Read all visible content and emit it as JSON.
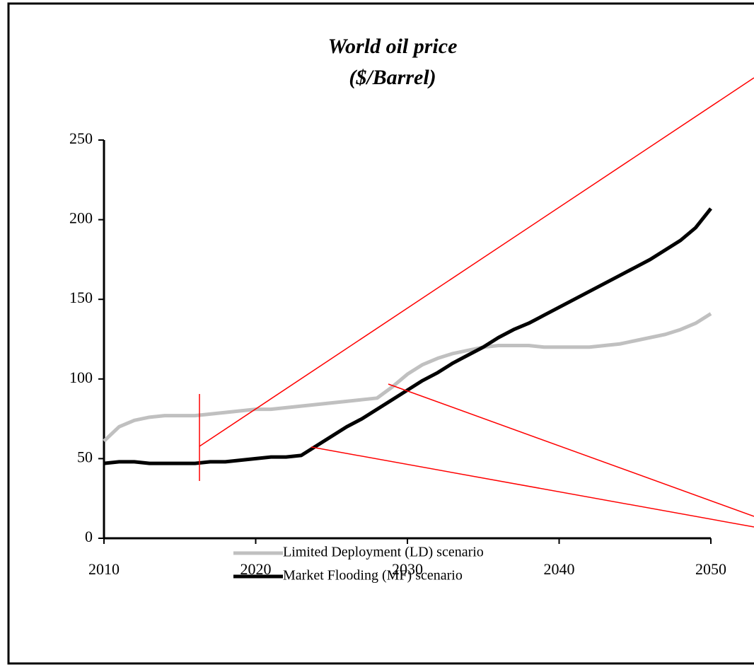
{
  "chart_data": {
    "type": "line",
    "title": "World oil price",
    "subtitle": "($/Barrel)",
    "x": [
      2010,
      2011,
      2012,
      2013,
      2014,
      2015,
      2016,
      2017,
      2018,
      2019,
      2020,
      2021,
      2022,
      2023,
      2024,
      2025,
      2026,
      2027,
      2028,
      2029,
      2030,
      2031,
      2032,
      2033,
      2034,
      2035,
      2036,
      2037,
      2038,
      2039,
      2040,
      2041,
      2042,
      2043,
      2044,
      2045,
      2046,
      2047,
      2048,
      2049,
      2050
    ],
    "series": [
      {
        "name": "Limited Deployment (LD) scenario",
        "color": "#c0c0c0",
        "values": [
          61,
          70,
          74,
          76,
          77,
          77,
          77,
          78,
          79,
          80,
          81,
          81,
          82,
          83,
          84,
          85,
          86,
          87,
          88,
          95,
          103,
          109,
          113,
          116,
          118,
          120,
          121,
          121,
          121,
          120,
          120,
          120,
          120,
          121,
          122,
          124,
          126,
          128,
          131,
          135,
          141
        ]
      },
      {
        "name": "Market Flooding (MF) scenario",
        "color": "#000000",
        "values": [
          47,
          48,
          48,
          47,
          47,
          47,
          47,
          48,
          48,
          49,
          50,
          51,
          51,
          52,
          58,
          64,
          70,
          75,
          81,
          87,
          93,
          99,
          104,
          110,
          115,
          120,
          126,
          131,
          135,
          140,
          145,
          150,
          155,
          160,
          165,
          170,
          175,
          181,
          187,
          195,
          207
        ]
      }
    ],
    "xlim": [
      2010,
      2050
    ],
    "xticks": [
      2010,
      2020,
      2030,
      2040,
      2050
    ],
    "ylim": [
      0,
      250
    ],
    "yticks": [
      0,
      50,
      100,
      150,
      200,
      250
    ]
  }
}
